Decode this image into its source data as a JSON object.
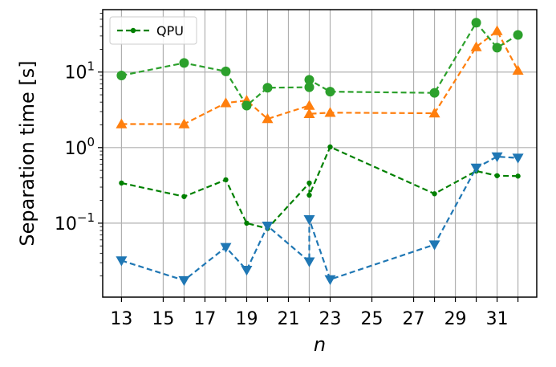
{
  "chart_data": {
    "type": "line",
    "x_tick_labels": [
      "13",
      "15",
      "17",
      "19",
      "21",
      "23",
      "25",
      "27",
      "29",
      "31"
    ],
    "extra_x_ticks": [
      16,
      18,
      20,
      22,
      28,
      30,
      32
    ],
    "xlim": [
      12.1,
      32.9
    ],
    "ylim": [
      0.0105,
      67
    ],
    "y_scale": "log",
    "y_major_ticks": [
      0.1,
      1,
      10
    ],
    "xlabel": "n",
    "ylabel": "Separation time [s]",
    "grid": true,
    "legend": {
      "placement": "top-left",
      "entries": [
        {
          "series_index": 0,
          "label": "QPU"
        }
      ]
    },
    "series": [
      {
        "color": "#008000",
        "marker": "circle-small",
        "x": [
          13,
          16,
          18,
          19,
          20,
          22,
          22,
          23,
          28,
          30,
          31,
          32
        ],
        "y": [
          0.34,
          0.225,
          0.375,
          0.1,
          0.085,
          0.34,
          0.235,
          1.02,
          0.245,
          0.49,
          0.425,
          0.42
        ]
      },
      {
        "color": "#1f77b4",
        "marker": "triangle-down",
        "x": [
          13,
          16,
          18,
          19,
          20,
          22,
          22,
          23,
          28,
          30,
          31,
          32
        ],
        "y": [
          0.032,
          0.0175,
          0.048,
          0.024,
          0.092,
          0.031,
          0.112,
          0.018,
          0.052,
          0.54,
          0.76,
          0.73
        ]
      },
      {
        "color": "#ff7f0e",
        "marker": "triangle-up",
        "x": [
          13,
          16,
          18,
          19,
          20,
          22,
          22,
          23,
          28,
          30,
          31,
          32
        ],
        "y": [
          2.05,
          2.05,
          3.9,
          4.2,
          2.4,
          3.6,
          2.8,
          2.9,
          2.85,
          21.5,
          35,
          10.5
        ]
      },
      {
        "color": "#2ca02c",
        "marker": "circle",
        "x": [
          13,
          16,
          18,
          19,
          20,
          22,
          22,
          23,
          28,
          30,
          31,
          32
        ],
        "y": [
          9.0,
          13.2,
          10.2,
          3.6,
          6.2,
          6.3,
          7.9,
          5.5,
          5.3,
          45,
          21,
          31
        ]
      }
    ]
  }
}
